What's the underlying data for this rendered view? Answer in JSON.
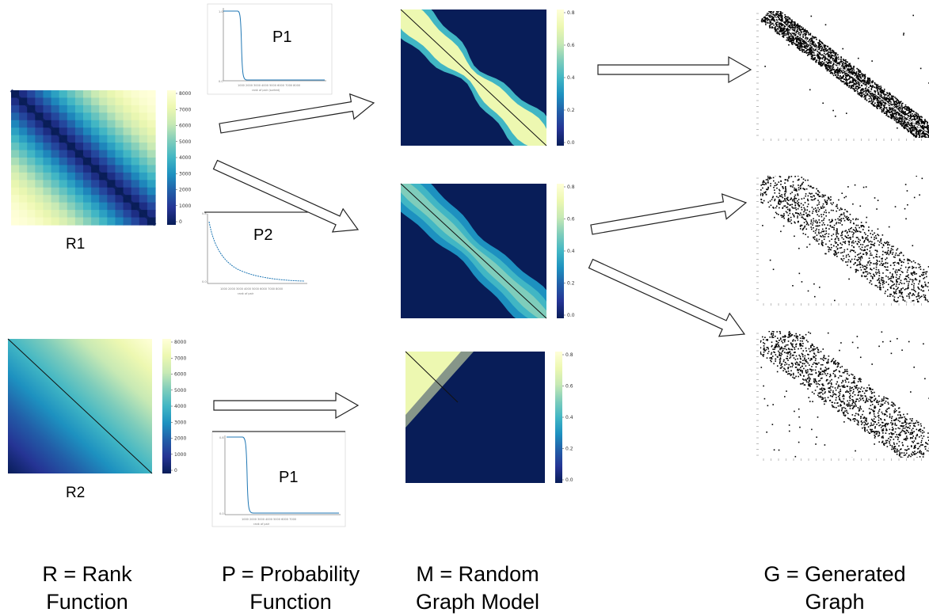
{
  "colors": {
    "cmap": [
      "#081d58",
      "#253494",
      "#225ea8",
      "#1d91c0",
      "#41b6c4",
      "#7fcdbb",
      "#c7e9b4",
      "#edf8b1",
      "#ffffd9"
    ],
    "line_blue": "#1f77b4",
    "arrow_stroke": "#222222"
  },
  "icons": {
    "arrow": "hollow-arrow-icon"
  },
  "columns": {
    "rank": {
      "line1": "R = Rank",
      "line2": "Function"
    },
    "prob": {
      "line1": "P = Probability",
      "line2": "Function"
    },
    "model": {
      "line1": "M = Random",
      "line2": "Graph Model"
    },
    "graph": {
      "line1": "G = Generated",
      "line2": "Graph"
    }
  },
  "labels": {
    "r1": "R1",
    "r2": "R2",
    "p1": "P1",
    "p2": "P2",
    "p1b": "P1"
  },
  "colorbars": {
    "rank_ticks": [
      "8000",
      "7000",
      "6000",
      "5000",
      "4000",
      "3000",
      "2000",
      "1000",
      "0"
    ],
    "prob_ticks": [
      "0.8",
      "0.6",
      "0.4",
      "0.2",
      "0.0"
    ]
  }
}
